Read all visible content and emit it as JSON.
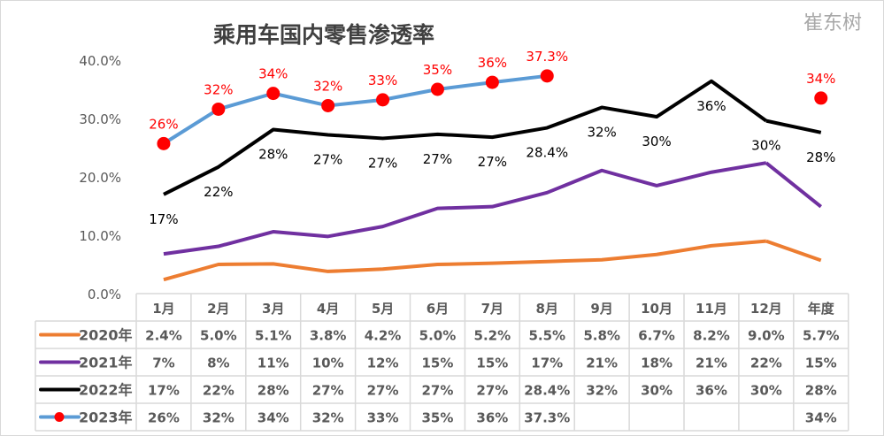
{
  "chart_data": {
    "type": "line",
    "title": "乘用车国内零售渗透率",
    "categories": [
      "1月",
      "2月",
      "3月",
      "4月",
      "5月",
      "6月",
      "7月",
      "8月",
      "9月",
      "10月",
      "11月",
      "12月",
      "年度"
    ],
    "ylim": [
      0,
      40
    ],
    "yticks": [
      "0.0%",
      "10.0%",
      "20.0%",
      "30.0%",
      "40.0%"
    ],
    "grid": false,
    "legend": "data-table",
    "series": [
      {
        "name": "2020年",
        "color": "#ED7D31",
        "values": [
          2.4,
          5.0,
          5.1,
          3.8,
          4.2,
          5.0,
          5.2,
          5.5,
          5.8,
          6.7,
          8.2,
          9.0,
          5.7
        ],
        "table": [
          "2.4%",
          "5.0%",
          "5.1%",
          "3.8%",
          "4.2%",
          "5.0%",
          "5.2%",
          "5.5%",
          "5.8%",
          "6.7%",
          "8.2%",
          "9.0%",
          "5.7%"
        ]
      },
      {
        "name": "2021年",
        "color": "#7030A0",
        "values": [
          6.8,
          8.1,
          10.6,
          9.8,
          11.5,
          14.6,
          14.9,
          17.3,
          21.1,
          18.5,
          20.8,
          22.4,
          14.9
        ],
        "table": [
          "7%",
          "8%",
          "11%",
          "10%",
          "12%",
          "15%",
          "15%",
          "17%",
          "21%",
          "18%",
          "21%",
          "22%",
          "15%"
        ]
      },
      {
        "name": "2022年",
        "color": "#000000",
        "values": [
          17.0,
          21.7,
          28.1,
          27.2,
          26.6,
          27.3,
          26.8,
          28.4,
          31.9,
          30.3,
          36.4,
          29.6,
          27.6
        ],
        "table": [
          "17%",
          "22%",
          "28%",
          "27%",
          "27%",
          "27%",
          "27%",
          "28.4%",
          "32%",
          "30%",
          "36%",
          "30%",
          "28%"
        ],
        "labels": [
          "17%",
          "22%",
          "28%",
          "27%",
          "27%",
          "27%",
          "27%",
          "28.4%",
          "32%",
          "30%",
          "36%",
          "30%",
          "28%"
        ]
      },
      {
        "name": "2023年",
        "color": "#5B9BD5",
        "marker": "#FF0000",
        "values": [
          25.7,
          31.6,
          34.3,
          32.2,
          33.2,
          35.0,
          36.2,
          37.3,
          null,
          null,
          null,
          null,
          33.5
        ],
        "table": [
          "26%",
          "32%",
          "34%",
          "32%",
          "33%",
          "35%",
          "36%",
          "37.3%",
          "",
          "",
          "",
          "",
          "34%"
        ],
        "labels": [
          "26%",
          "32%",
          "34%",
          "32%",
          "33%",
          "35%",
          "36%",
          "37.3%",
          "",
          "",
          "",
          "",
          "34%"
        ]
      }
    ]
  },
  "watermark": "崔东树"
}
